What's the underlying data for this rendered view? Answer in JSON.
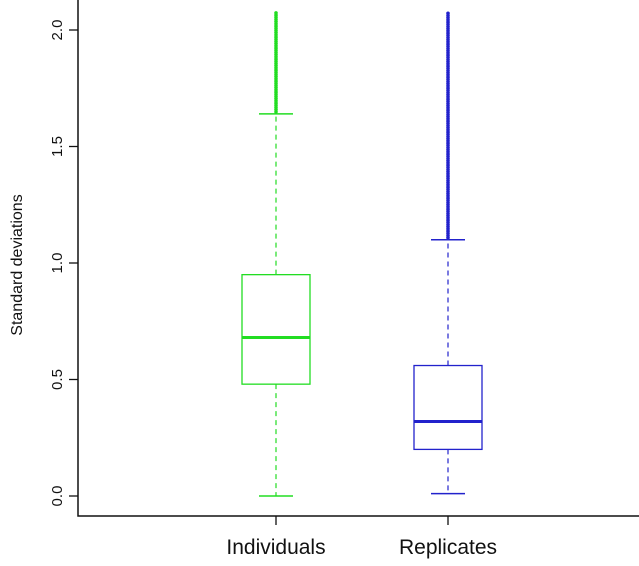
{
  "chart_data": {
    "type": "box",
    "title": "",
    "xlabel": "",
    "ylabel": "Standard deviations",
    "ylim": [
      -0.08,
      2.08
    ],
    "yticks": [
      "0.0",
      "0.5",
      "1.0",
      "1.5",
      "2.0"
    ],
    "ytick_values": [
      0.0,
      0.5,
      1.0,
      1.5,
      2.0
    ],
    "grid": false,
    "legend": "none",
    "categories": [
      "Individuals",
      "Replicates"
    ],
    "series": [
      {
        "category": "Individuals",
        "color": "#22dd22",
        "whisker_low": 0.0,
        "q1": 0.48,
        "median": 0.68,
        "q3": 0.95,
        "whisker_high": 1.64,
        "outliers_range": [
          1.64,
          2.08
        ]
      },
      {
        "category": "Replicates",
        "color": "#2222cc",
        "whisker_low": 0.01,
        "q1": 0.2,
        "median": 0.32,
        "q3": 0.56,
        "whisker_high": 1.1,
        "outliers_range": [
          1.1,
          2.08
        ]
      }
    ]
  }
}
